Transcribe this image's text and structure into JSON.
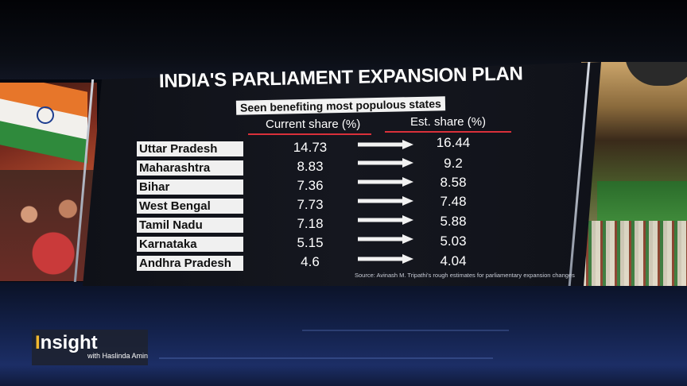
{
  "graphic": {
    "title": "INDIA'S PARLIAMENT EXPANSION PLAN",
    "subtitle": "Seen benefiting most populous states",
    "col_current": "Current share (%)",
    "col_est": "Est. share (%)",
    "rows": [
      {
        "state": "Uttar Pradesh",
        "current": "14.73",
        "est": "16.44"
      },
      {
        "state": "Maharashtra",
        "current": "8.83",
        "est": "9.2"
      },
      {
        "state": "Bihar",
        "current": "7.36",
        "est": "8.58"
      },
      {
        "state": "West Bengal",
        "current": "7.73",
        "est": "7.48"
      },
      {
        "state": "Tamil Nadu",
        "current": "7.18",
        "est": "5.88"
      },
      {
        "state": "Karnataka",
        "current": "5.15",
        "est": "5.03"
      },
      {
        "state": "Andhra Pradesh",
        "current": "4.6",
        "est": "4.04"
      }
    ],
    "source": "Source: Avinash M. Tripathi's rough estimates for parliamentary expansion changes",
    "accent_color": "#d9303a",
    "arrow_icon": "right-arrow-icon"
  },
  "show": {
    "name_initial": "I",
    "name_rest": "nsight",
    "host_line": "with Haslinda Amin",
    "accent_color": "#f2b82e"
  }
}
